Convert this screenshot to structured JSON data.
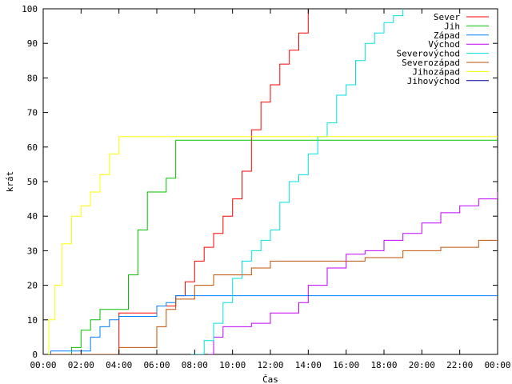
{
  "chart_data": {
    "type": "line",
    "xlabel": "Čas",
    "ylabel": "krát",
    "xlim": [
      0,
      24
    ],
    "ylim": [
      0,
      100
    ],
    "grid": false,
    "legend_position": "top-right",
    "x_ticks": [
      {
        "value": 0,
        "label": "00:00"
      },
      {
        "value": 2,
        "label": "02:00"
      },
      {
        "value": 4,
        "label": "04:00"
      },
      {
        "value": 6,
        "label": "06:00"
      },
      {
        "value": 8,
        "label": "08:00"
      },
      {
        "value": 10,
        "label": "10:00"
      },
      {
        "value": 12,
        "label": "12:00"
      },
      {
        "value": 14,
        "label": "14:00"
      },
      {
        "value": 16,
        "label": "16:00"
      },
      {
        "value": 18,
        "label": "18:00"
      },
      {
        "value": 20,
        "label": "20:00"
      },
      {
        "value": 22,
        "label": "22:00"
      },
      {
        "value": 24,
        "label": "00:00"
      }
    ],
    "y_ticks": [
      0,
      10,
      20,
      30,
      40,
      50,
      60,
      70,
      80,
      90,
      100
    ],
    "series": [
      {
        "name": "Sever",
        "color": "#ff0000",
        "x": [
          0,
          3.3,
          4.0,
          5.4,
          6.0,
          7.0,
          7.5,
          8.0,
          8.5,
          9.0,
          9.5,
          10.0,
          10.5,
          11.0,
          11.5,
          12.0,
          12.5,
          13.0,
          13.5,
          14.0
        ],
        "y": [
          0,
          0,
          12,
          12,
          14,
          17,
          21,
          27,
          31,
          35,
          40,
          45,
          53,
          65,
          73,
          78,
          84,
          88,
          93,
          100
        ]
      },
      {
        "name": "Jih",
        "color": "#00c000",
        "x": [
          0,
          1.5,
          2.0,
          2.5,
          3.0,
          3.5,
          4.0,
          4.5,
          5.0,
          5.5,
          6.0,
          6.5,
          7.0,
          24
        ],
        "y": [
          0,
          2,
          7,
          10,
          13,
          13,
          13,
          23,
          36,
          47,
          47,
          51,
          62,
          62
        ]
      },
      {
        "name": "Západ",
        "color": "#0080ff",
        "x": [
          0,
          0.4,
          2.0,
          2.5,
          3.0,
          3.5,
          4.0,
          5.5,
          6.0,
          6.5,
          7.0,
          24
        ],
        "y": [
          0,
          1,
          1,
          5,
          8,
          10,
          11,
          11,
          14,
          15,
          17,
          17
        ]
      },
      {
        "name": "Východ",
        "color": "#c000ff",
        "x": [
          8.7,
          9.0,
          9.5,
          10.0,
          11.0,
          12.0,
          13.0,
          13.5,
          14.0,
          15.0,
          16.0,
          17.0,
          18.0,
          19.0,
          20.0,
          21.0,
          22.0,
          23.0,
          24.0
        ],
        "y": [
          0,
          5,
          8,
          8,
          9,
          12,
          12,
          15,
          20,
          25,
          29,
          30,
          33,
          35,
          38,
          41,
          43,
          45,
          47
        ]
      },
      {
        "name": "Severovýchod",
        "color": "#00e0e0",
        "x": [
          7.8,
          8.5,
          9.0,
          9.5,
          10.0,
          10.5,
          11.0,
          11.5,
          12.0,
          12.5,
          13.0,
          13.5,
          14.0,
          14.5,
          15.0,
          15.5,
          16.0,
          16.5,
          17.0,
          17.5,
          18.0,
          18.5,
          19.0
        ],
        "y": [
          0,
          4,
          9,
          15,
          22,
          27,
          30,
          33,
          36,
          44,
          50,
          52,
          58,
          63,
          67,
          75,
          78,
          85,
          90,
          93,
          96,
          98,
          100
        ]
      },
      {
        "name": "Severozápad",
        "color": "#c05000",
        "x": [
          0,
          3.5,
          4.0,
          5.5,
          6.0,
          6.5,
          7.0,
          8.0,
          9.0,
          10.0,
          11.0,
          12.0,
          13.0,
          15.0,
          17.0,
          19.0,
          21.0,
          23.0,
          24.0
        ],
        "y": [
          0,
          0,
          2,
          2,
          8,
          13,
          16,
          20,
          23,
          23,
          25,
          27,
          27,
          27,
          28,
          30,
          31,
          33,
          33
        ]
      },
      {
        "name": "Jihozápad",
        "color": "#ffff00",
        "x": [
          0,
          0.3,
          0.6,
          1.0,
          1.5,
          2.0,
          2.5,
          3.0,
          3.5,
          4.0,
          24
        ],
        "y": [
          0,
          10,
          20,
          32,
          40,
          43,
          47,
          52,
          58,
          63,
          63
        ]
      },
      {
        "name": "Jihovýchod",
        "color": "#0000a0",
        "x": [],
        "y": []
      }
    ]
  }
}
